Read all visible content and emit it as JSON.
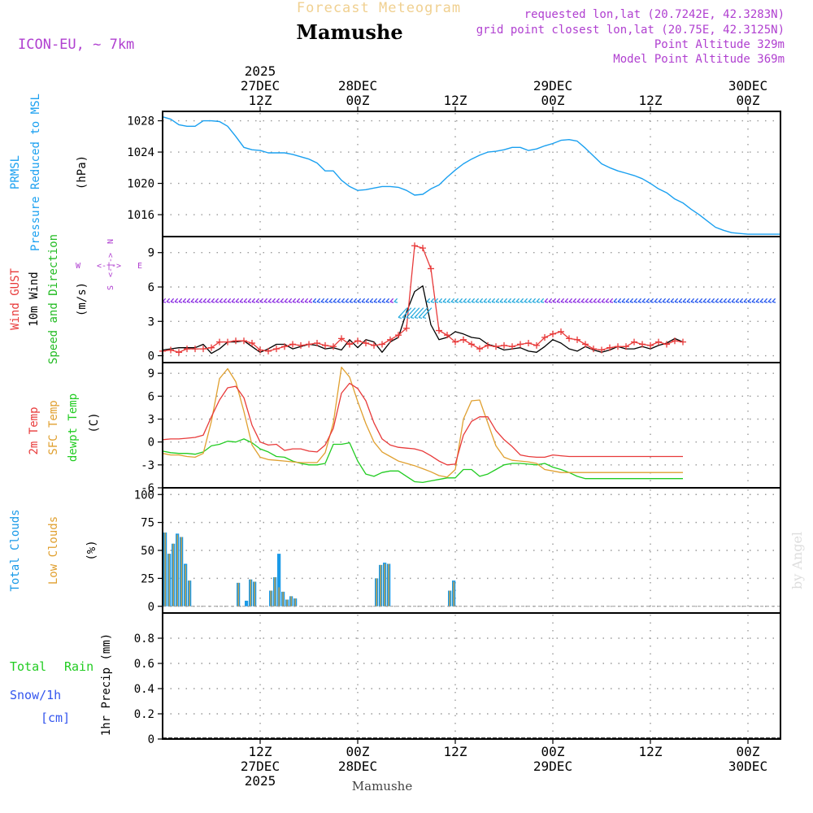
{
  "header": {
    "subtitle": "Forecast Meteogram",
    "location": "Mamushe",
    "model": "ICON-EU, ~ 7km",
    "requested": "requested lon,lat (20.7242E, 42.3283N)",
    "gridpoint": "grid point closest lon,lat (20.75E, 42.3125N)",
    "point_altitude": "Point Altitude 329m",
    "model_altitude": "Model Point Altitude 369m",
    "footer_location": "Mamushe",
    "credit": "by Angel"
  },
  "colors": {
    "pressure": "#1aa0f0",
    "gust": "#e83a3a",
    "wind10m": "#000000",
    "direction": "#22bb22",
    "wind_arrow_purple": "#8a2be2",
    "wind_arrow_blue": "#2255ee",
    "wind_arrow_cyan": "#22a8dd",
    "temp2m": "#e83a3a",
    "sfctemp": "#e0a030",
    "dewpt": "#22cc22",
    "total_clouds": "#1a9ae8",
    "low_clouds": "#e0a030",
    "rain": "#22cc22",
    "snow": "#3355ee",
    "accent": "#b040d0"
  },
  "chart_data": [
    {
      "type": "line",
      "name": "pressure",
      "title": "PRMSL Pressure Reduced to MSL",
      "label_line1": "PRMSL",
      "label_line2": "Pressure Reduced to MSL",
      "ylabel": "(hPa)",
      "ylim": [
        1013.2,
        1029.2
      ],
      "yticks": [
        1016,
        1020,
        1024,
        1028
      ],
      "ytick_labels": [
        "1016",
        "1020",
        "1024",
        "1028"
      ],
      "x_hours": [
        0,
        1,
        2,
        3,
        4,
        5,
        6,
        7,
        8,
        9,
        10,
        11,
        12,
        13,
        14,
        15,
        16,
        17,
        18,
        19,
        20,
        21,
        22,
        23,
        24,
        25,
        26,
        27,
        28,
        29,
        30,
        31,
        32,
        33,
        34,
        35,
        36,
        37,
        38,
        39,
        40,
        41,
        42,
        43,
        44,
        45,
        46,
        47,
        48,
        49,
        50,
        51,
        52,
        53,
        54,
        55,
        56,
        57,
        58,
        59,
        60,
        61,
        62,
        63,
        64,
        65,
        66,
        67,
        68,
        69,
        70,
        71,
        72,
        73,
        74,
        75,
        76
      ],
      "values": [
        1028.5,
        1028.2,
        1027.5,
        1027.3,
        1027.3,
        1028.0,
        1028.0,
        1027.9,
        1027.3,
        1026.0,
        1024.6,
        1024.3,
        1024.2,
        1023.9,
        1023.9,
        1023.9,
        1023.7,
        1023.4,
        1023.1,
        1022.6,
        1021.6,
        1021.6,
        1020.4,
        1019.6,
        1019.1,
        1019.2,
        1019.4,
        1019.6,
        1019.6,
        1019.5,
        1019.1,
        1018.5,
        1018.6,
        1019.3,
        1019.8,
        1020.8,
        1021.7,
        1022.5,
        1023.1,
        1023.6,
        1024.0,
        1024.1,
        1024.3,
        1024.6,
        1024.6,
        1024.2,
        1024.4,
        1024.8,
        1025.1,
        1025.5,
        1025.6,
        1025.4,
        1024.5,
        1023.5,
        1022.5,
        1022.0,
        1021.6,
        1021.3,
        1021.0,
        1020.6,
        1020.0,
        1019.3,
        1018.8,
        1018.0,
        1017.5,
        1016.7,
        1016.0,
        1015.2,
        1014.4,
        1014.0,
        1013.7,
        1013.6,
        1013.5,
        1013.5,
        1013.5,
        1013.5,
        1013.5
      ]
    },
    {
      "type": "line",
      "name": "wind",
      "label_gust": "Wind GUST",
      "label_10m": "10m Wind",
      "label_dir": "Speed and Direction",
      "ylabel": "(m/s)",
      "compass": {
        "n": "N",
        "s": "S",
        "w": "W",
        "e": "E"
      },
      "ylim": [
        -0.6,
        10.4
      ],
      "yticks": [
        0,
        3,
        6,
        9
      ],
      "ytick_labels": [
        "0",
        "3",
        "6",
        "9"
      ],
      "x_hours": [
        0,
        1,
        2,
        3,
        4,
        5,
        6,
        7,
        8,
        9,
        10,
        11,
        12,
        13,
        14,
        15,
        16,
        17,
        18,
        19,
        20,
        21,
        22,
        23,
        24,
        25,
        26,
        27,
        28,
        29,
        30,
        31,
        32,
        33,
        34,
        35,
        36,
        37,
        38,
        39,
        40,
        41,
        42,
        43,
        44,
        45,
        46,
        47,
        48,
        49,
        50,
        51,
        52,
        53,
        54,
        55,
        56,
        57,
        58,
        59,
        60,
        61,
        62,
        63,
        64
      ],
      "wind10m": [
        0.5,
        0.6,
        0.7,
        0.7,
        0.7,
        1.0,
        0.2,
        0.6,
        1.2,
        1.2,
        1.3,
        0.8,
        0.3,
        0.6,
        1.0,
        1.0,
        0.6,
        0.8,
        1.0,
        0.9,
        0.6,
        0.7,
        0.5,
        1.4,
        0.7,
        1.4,
        1.2,
        0.3,
        1.2,
        1.6,
        3.8,
        5.6,
        6.1,
        2.7,
        1.4,
        1.6,
        2.1,
        1.9,
        1.6,
        1.5,
        1.0,
        0.8,
        0.5,
        0.6,
        0.7,
        0.4,
        0.3,
        0.8,
        1.4,
        1.1,
        0.6,
        0.4,
        0.8,
        0.5,
        0.3,
        0.5,
        0.8,
        0.6,
        0.6,
        0.8,
        0.6,
        0.9,
        1.1,
        1.5,
        1.2
      ],
      "gust": [
        0.4,
        0.5,
        0.3,
        0.6,
        0.6,
        0.6,
        0.7,
        1.2,
        1.2,
        1.3,
        1.3,
        1.1,
        0.5,
        0.4,
        0.6,
        0.8,
        1.0,
        0.9,
        1.0,
        1.1,
        0.9,
        0.8,
        1.5,
        1.0,
        1.3,
        1.1,
        0.9,
        1.0,
        1.4,
        1.8,
        2.4,
        9.6,
        9.4,
        7.6,
        2.2,
        1.8,
        1.2,
        1.4,
        1.0,
        0.6,
        0.9,
        0.8,
        0.9,
        0.8,
        1.0,
        1.1,
        0.9,
        1.6,
        1.9,
        2.1,
        1.5,
        1.4,
        1.0,
        0.6,
        0.5,
        0.7,
        0.8,
        0.8,
        1.2,
        1.0,
        0.9,
        1.2,
        1.0,
        1.3,
        1.2
      ]
    },
    {
      "type": "line",
      "name": "temperature",
      "label_2m": "2m Temp",
      "label_sfc": "SFC Temp",
      "label_dewpt": "dewpt Temp",
      "ylabel": "(C)",
      "ylim": [
        -6,
        10.4
      ],
      "yticks": [
        -6,
        -3,
        0,
        3,
        6,
        9
      ],
      "ytick_labels": [
        "-6",
        "-3",
        "0",
        "3",
        "6",
        "9"
      ],
      "x_hours": [
        0,
        1,
        2,
        3,
        4,
        5,
        6,
        7,
        8,
        9,
        10,
        11,
        12,
        13,
        14,
        15,
        16,
        17,
        18,
        19,
        20,
        21,
        22,
        23,
        24,
        25,
        26,
        27,
        28,
        29,
        30,
        31,
        32,
        33,
        34,
        35,
        36,
        37,
        38,
        39,
        40,
        41,
        42,
        43,
        44,
        45,
        46,
        47,
        48,
        49,
        50,
        51,
        52,
        53,
        54,
        55,
        56,
        57,
        58,
        59,
        60,
        61,
        62,
        63,
        64
      ],
      "temp2m": [
        0.3,
        0.4,
        0.4,
        0.5,
        0.6,
        0.9,
        3.3,
        5.5,
        7.1,
        7.3,
        5.8,
        2.2,
        0.0,
        -0.4,
        -0.3,
        -1.1,
        -0.9,
        -0.9,
        -1.2,
        -1.3,
        -0.4,
        1.8,
        6.4,
        7.7,
        7.0,
        5.4,
        2.5,
        0.4,
        -0.4,
        -0.7,
        -0.8,
        -0.9,
        -1.2,
        -1.8,
        -2.5,
        -3.0,
        -2.9,
        0.9,
        2.7,
        3.3,
        3.3,
        1.5,
        0.3,
        -0.6,
        -1.7,
        -1.9,
        -2.0,
        -2.0,
        -1.7,
        -1.8,
        -1.9,
        -1.9,
        -1.9,
        -1.9,
        -1.9,
        -1.9,
        -1.9,
        -1.9,
        -1.9,
        -1.9,
        -1.9,
        -1.9,
        -1.9,
        -1.9,
        -1.9
      ],
      "sfctemp": [
        -1.5,
        -1.7,
        -1.7,
        -1.9,
        -2.0,
        -1.5,
        2.7,
        8.3,
        9.6,
        7.9,
        4.0,
        -0.4,
        -2.0,
        -2.3,
        -2.4,
        -2.5,
        -2.6,
        -2.7,
        -2.7,
        -2.7,
        -1.4,
        2.5,
        9.8,
        8.5,
        5.3,
        2.4,
        0.0,
        -1.3,
        -1.9,
        -2.5,
        -2.8,
        -3.1,
        -3.5,
        -3.9,
        -4.4,
        -4.6,
        -3.6,
        3.0,
        5.4,
        5.5,
        2.5,
        -0.5,
        -2.0,
        -2.4,
        -2.5,
        -2.6,
        -2.8,
        -3.6,
        -3.8,
        -4.0,
        -4.0,
        -4.0,
        -4.0,
        -4.0,
        -4.0,
        -4.0,
        -4.0,
        -4.0,
        -4.0,
        -4.0,
        -4.0,
        -4.0,
        -4.0,
        -4.0,
        -4.0
      ],
      "dewpt": [
        -1.2,
        -1.4,
        -1.5,
        -1.5,
        -1.6,
        -1.3,
        -0.5,
        -0.3,
        0.1,
        0.0,
        0.4,
        -0.1,
        -0.9,
        -1.3,
        -1.9,
        -2.0,
        -2.5,
        -2.8,
        -3.0,
        -3.0,
        -2.8,
        -0.3,
        -0.3,
        -0.1,
        -2.5,
        -4.2,
        -4.5,
        -4.0,
        -3.8,
        -3.8,
        -4.5,
        -5.2,
        -5.3,
        -5.1,
        -4.9,
        -4.7,
        -4.7,
        -3.6,
        -3.6,
        -4.5,
        -4.2,
        -3.6,
        -3.0,
        -2.8,
        -2.8,
        -2.9,
        -3.0,
        -2.8,
        -3.3,
        -3.6,
        -4.0,
        -4.5,
        -4.8,
        -4.8,
        -4.8,
        -4.8,
        -4.8,
        -4.8,
        -4.8,
        -4.8,
        -4.8,
        -4.8,
        -4.8,
        -4.8,
        -4.8
      ]
    },
    {
      "type": "bar",
      "name": "clouds",
      "label_total": "Total Clouds",
      "label_low": "Low Clouds",
      "ylabel": "(%)",
      "ylim": [
        -6,
        106
      ],
      "yticks": [
        0,
        25,
        50,
        75,
        100
      ],
      "ytick_labels": [
        "0",
        "25",
        "50",
        "75",
        "100"
      ],
      "bars": [
        {
          "hour": 0.0,
          "total": 66,
          "low": 66
        },
        {
          "hour": 0.5,
          "total": 47,
          "low": 47
        },
        {
          "hour": 1.0,
          "total": 56,
          "low": 56
        },
        {
          "hour": 1.5,
          "total": 65,
          "low": 64
        },
        {
          "hour": 2.0,
          "total": 62,
          "low": 62
        },
        {
          "hour": 2.5,
          "total": 38,
          "low": 37
        },
        {
          "hour": 3.0,
          "total": 23,
          "low": 23
        },
        {
          "hour": 9.0,
          "total": 21,
          "low": 21
        },
        {
          "hour": 10.0,
          "total": 5,
          "low": 0
        },
        {
          "hour": 10.5,
          "total": 24,
          "low": 24
        },
        {
          "hour": 11.0,
          "total": 22,
          "low": 22
        },
        {
          "hour": 13.0,
          "total": 14,
          "low": 14
        },
        {
          "hour": 13.5,
          "total": 26,
          "low": 26
        },
        {
          "hour": 14.0,
          "total": 47,
          "low": 17
        },
        {
          "hour": 14.5,
          "total": 13,
          "low": 13
        },
        {
          "hour": 15.0,
          "total": 6,
          "low": 6
        },
        {
          "hour": 15.5,
          "total": 9,
          "low": 9
        },
        {
          "hour": 16.0,
          "total": 7,
          "low": 7
        },
        {
          "hour": 26.0,
          "total": 25,
          "low": 25
        },
        {
          "hour": 26.5,
          "total": 37,
          "low": 37
        },
        {
          "hour": 27.0,
          "total": 39,
          "low": 38
        },
        {
          "hour": 27.5,
          "total": 38,
          "low": 38
        },
        {
          "hour": 35.0,
          "total": 14,
          "low": 14
        },
        {
          "hour": 35.5,
          "total": 23,
          "low": 22
        }
      ]
    },
    {
      "type": "line",
      "name": "precip",
      "label_total": "Total",
      "label_rain": "Rain",
      "label_snow": "Snow/1h",
      "label_cm": "[cm]",
      "ylabel": "1hr Precip (mm)",
      "ylim": [
        0,
        1.0
      ],
      "yticks": [
        0,
        0.2,
        0.4,
        0.6,
        0.8
      ],
      "ytick_labels": [
        "0",
        "0.2",
        "0.4",
        "0.6",
        "0.8"
      ],
      "values": [
        0,
        0,
        0,
        0,
        0
      ]
    }
  ],
  "time_axis": {
    "top_ticks": [
      {
        "hour": 12,
        "lines": [
          "2025",
          "27DEC",
          "12Z"
        ]
      },
      {
        "hour": 24,
        "lines": [
          "28DEC",
          "00Z"
        ]
      },
      {
        "hour": 36,
        "lines": [
          "12Z"
        ]
      },
      {
        "hour": 48,
        "lines": [
          "29DEC",
          "00Z"
        ]
      },
      {
        "hour": 60,
        "lines": [
          "12Z"
        ]
      },
      {
        "hour": 72,
        "lines": [
          "30DEC",
          "00Z"
        ]
      }
    ],
    "bottom_ticks": [
      {
        "hour": 12,
        "lines": [
          "12Z",
          "27DEC",
          "2025"
        ]
      },
      {
        "hour": 24,
        "lines": [
          "00Z",
          "28DEC"
        ]
      },
      {
        "hour": 36,
        "lines": [
          "12Z"
        ]
      },
      {
        "hour": 48,
        "lines": [
          "00Z",
          "29DEC"
        ]
      },
      {
        "hour": 60,
        "lines": [
          "12Z"
        ]
      },
      {
        "hour": 72,
        "lines": [
          "00Z",
          "30DEC"
        ]
      }
    ]
  }
}
